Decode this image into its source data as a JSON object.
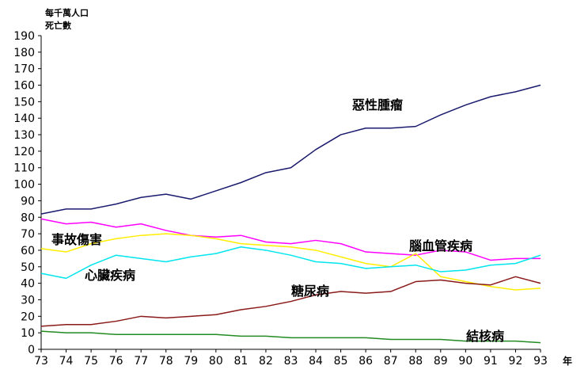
{
  "ylabel_lines": [
    "每千萬人口",
    "死亡數"
  ],
  "xlabel": "年",
  "chart_data": {
    "type": "line",
    "title": "",
    "ylabel": "每千萬人口死亡數",
    "xlabel": "年",
    "ylim": [
      0,
      190
    ],
    "yticks": [
      0,
      10,
      20,
      30,
      40,
      50,
      60,
      70,
      80,
      90,
      100,
      110,
      120,
      130,
      140,
      150,
      160,
      170,
      180,
      190
    ],
    "x": [
      73,
      74,
      75,
      76,
      77,
      78,
      79,
      80,
      81,
      82,
      83,
      84,
      85,
      86,
      87,
      88,
      89,
      90,
      91,
      92,
      93
    ],
    "grid": false,
    "legend": "inline labels",
    "series": [
      {
        "name": "惡性腫瘤",
        "color": "#1a1a6e",
        "values": [
          82,
          85,
          85,
          88,
          92,
          94,
          91,
          96,
          101,
          107,
          110,
          121,
          130,
          134,
          134,
          135,
          142,
          148,
          153,
          156,
          160
        ]
      },
      {
        "name": "腦血管疾病",
        "color": "#ff00ff",
        "values": [
          79,
          76,
          77,
          74,
          76,
          72,
          69,
          68,
          69,
          65,
          64,
          66,
          64,
          59,
          58,
          57,
          60,
          59,
          54,
          55,
          55
        ]
      },
      {
        "name": "事故傷害",
        "color": "#ffee00",
        "values": [
          61,
          59,
          64,
          67,
          69,
          70,
          69,
          67,
          64,
          63,
          62,
          60,
          56,
          52,
          50,
          58,
          44,
          41,
          38,
          36,
          37
        ]
      },
      {
        "name": "心臟疾病",
        "color": "#00e5ee",
        "values": [
          46,
          43,
          51,
          57,
          55,
          53,
          56,
          58,
          62,
          60,
          57,
          53,
          52,
          49,
          50,
          51,
          47,
          48,
          51,
          52,
          57
        ]
      },
      {
        "name": "糖尿病",
        "color": "#8b1a1a",
        "values": [
          14,
          15,
          15,
          17,
          20,
          19,
          20,
          21,
          24,
          26,
          29,
          33,
          35,
          34,
          35,
          41,
          42,
          40,
          39,
          44,
          40
        ]
      },
      {
        "name": "結核病",
        "color": "#228b22",
        "values": [
          11,
          10,
          10,
          9,
          9,
          9,
          9,
          9,
          8,
          8,
          7,
          7,
          7,
          7,
          6,
          6,
          6,
          5,
          5,
          5,
          4
        ]
      }
    ]
  }
}
